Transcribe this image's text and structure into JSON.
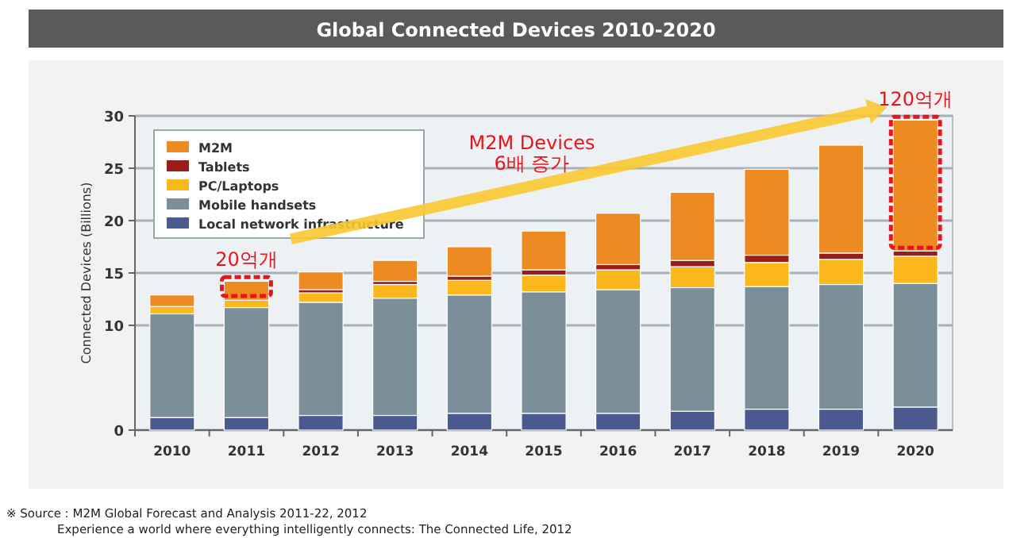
{
  "chart_data": {
    "type": "bar",
    "stacked": true,
    "title": "Global Connected Devices 2010-2020",
    "ylabel": "Connected Devices (Billions)",
    "categories": [
      "2010",
      "2011",
      "2012",
      "2013",
      "2014",
      "2015",
      "2016",
      "2017",
      "2018",
      "2019",
      "2020"
    ],
    "series": [
      {
        "name": "Local network infrastructure",
        "color": "#4a5a8f",
        "values": [
          1.2,
          1.2,
          1.4,
          1.4,
          1.6,
          1.6,
          1.6,
          1.8,
          2.0,
          2.0,
          2.2
        ]
      },
      {
        "name": "Mobile handsets",
        "color": "#7a8f9a",
        "values": [
          9.9,
          10.5,
          10.8,
          11.2,
          11.3,
          11.6,
          11.8,
          11.8,
          11.7,
          11.9,
          11.8
        ]
      },
      {
        "name": "PC/Laptops",
        "color": "#fbb81c",
        "values": [
          0.7,
          0.7,
          0.9,
          1.3,
          1.4,
          1.6,
          1.9,
          2.0,
          2.3,
          2.4,
          2.6
        ]
      },
      {
        "name": "Tablets",
        "color": "#9b1c1c",
        "values": [
          null,
          null,
          0.3,
          0.3,
          0.4,
          0.5,
          0.5,
          0.6,
          0.7,
          0.6,
          0.5
        ]
      },
      {
        "name": "M2M",
        "color": "#ee8a22",
        "values": [
          1.1,
          1.8,
          1.7,
          2.0,
          2.8,
          3.7,
          4.9,
          6.5,
          8.2,
          10.3,
          12.5
        ]
      }
    ],
    "ylim": [
      0,
      30
    ],
    "yticks": [
      0,
      10,
      15,
      20,
      25,
      30
    ],
    "grid": "y",
    "legend": "top left",
    "annotations": [
      {
        "text": "20억개",
        "x": "2011",
        "y": 14.3
      },
      {
        "text": "120억개",
        "x": "2020",
        "y": 29.6
      },
      "M2M Devices\n6배 증가",
      "※ Source : M2M Global Forecast and Analysis 2011-22, 2012",
      "Experience a world where everything intelligently connects: The Connected Life, 2012"
    ]
  }
}
